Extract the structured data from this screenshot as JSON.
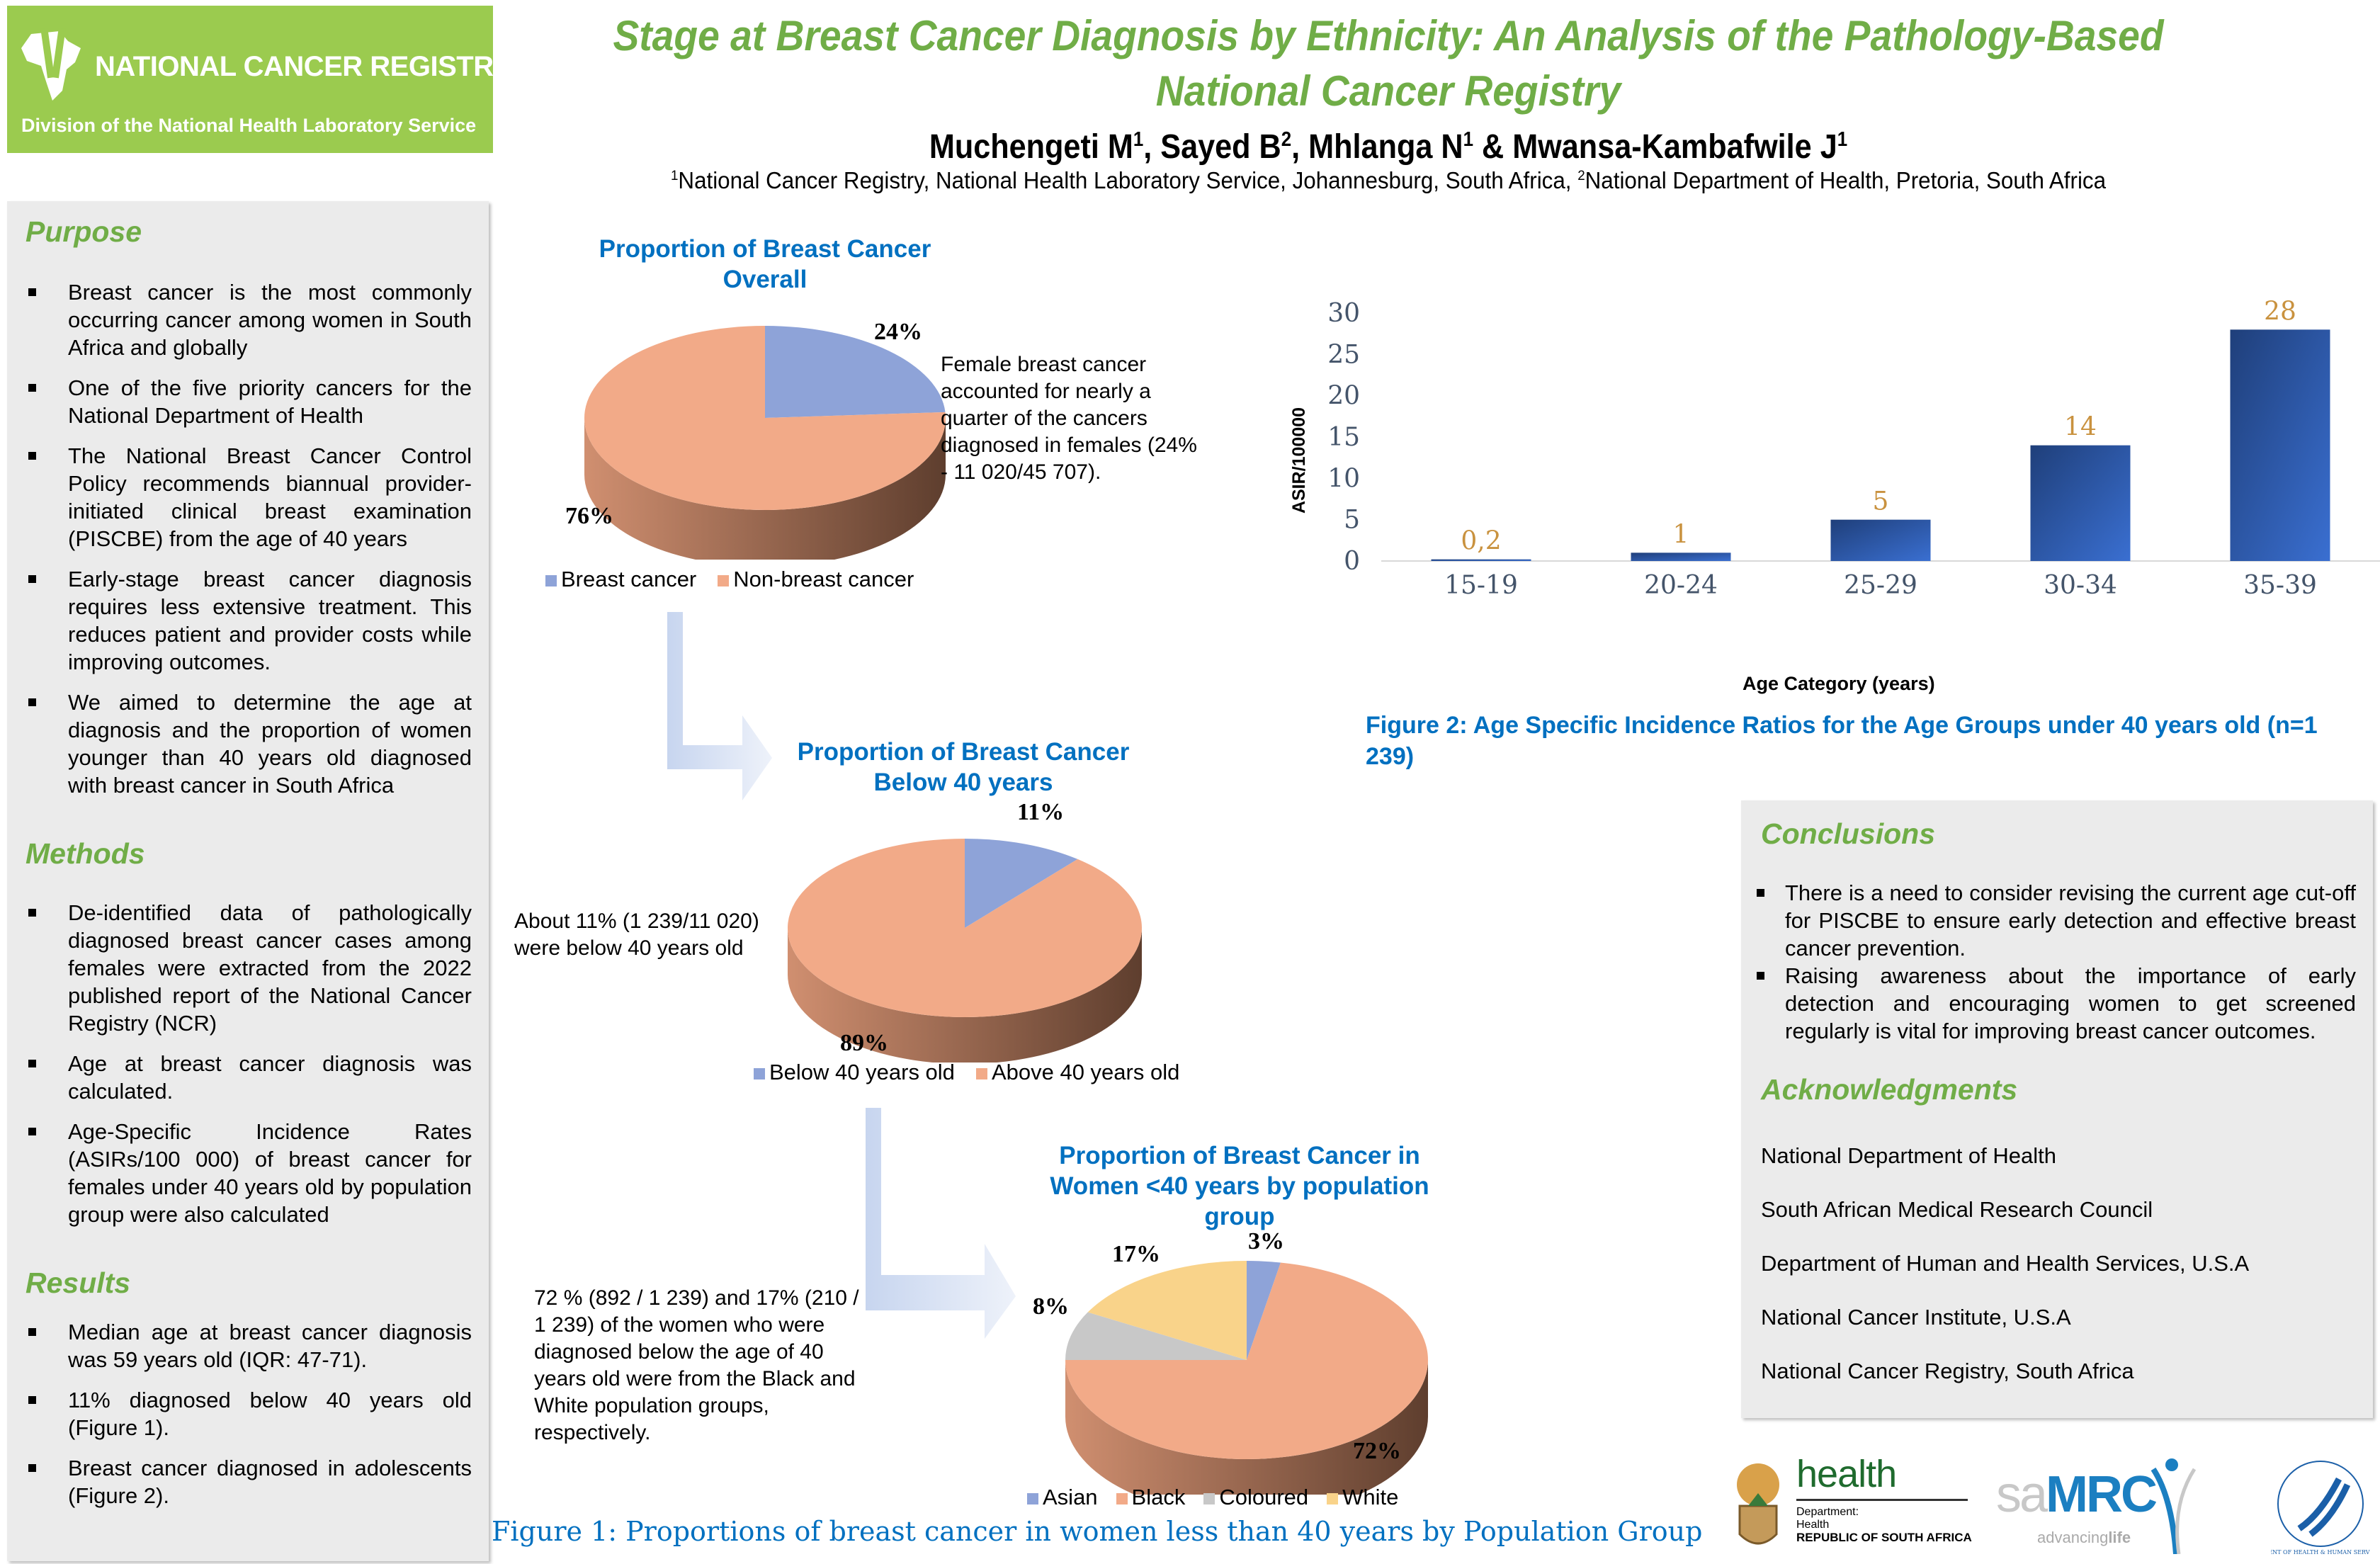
{
  "header": {
    "logo": {
      "org": "NATIONAL CANCER REGISTRY",
      "division": "Division of the National Health Laboratory Service"
    },
    "title_line1": "Stage at Breast Cancer Diagnosis by Ethnicity: An Analysis of the Pathology-Based",
    "title_line2": "National Cancer Registry",
    "authors": [
      {
        "name": "Muchengeti M",
        "aff": "1",
        "sep": ", "
      },
      {
        "name": "Sayed B",
        "aff": "2",
        "sep": ", "
      },
      {
        "name": "Mhlanga N",
        "aff": "1",
        "sep": " & "
      },
      {
        "name": "Mwansa-Kambafwile J",
        "aff": "1",
        "sep": ""
      }
    ],
    "affiliations": [
      {
        "num": "1",
        "text": "National Cancer Registry, National Health Laboratory Service, Johannesburg, South Africa, "
      },
      {
        "num": "2",
        "text": "National Department of Health, Pretoria, South Africa"
      }
    ]
  },
  "purpose": {
    "heading": "Purpose",
    "items": [
      "Breast cancer is the most commonly occurring cancer among women in South Africa and globally",
      "One of the five priority cancers for the National Department of Health",
      "The National Breast Cancer Control Policy recommends biannual provider-initiated clinical breast examination (PISCBE) from the age of 40 years",
      "Early-stage breast cancer diagnosis requires less extensive treatment. This reduces patient and provider costs while improving outcomes.",
      "We aimed to determine the age at diagnosis and the proportion of women younger than 40 years old diagnosed with breast cancer in South Africa"
    ]
  },
  "methods": {
    "heading": "Methods",
    "items": [
      "De-identified data of pathologically diagnosed breast cancer cases among females were extracted from the 2022 published report of the National Cancer Registry (NCR)",
      "Age at breast cancer diagnosis was calculated.",
      "Age-Specific Incidence Rates (ASIRs/100 000) of breast cancer for females under 40 years old by population group were also calculated"
    ]
  },
  "results": {
    "heading": "Results",
    "items": [
      "Median age at breast cancer diagnosis was 59 years old (IQR: 47-71).",
      "11% diagnosed below 40 years old (Figure 1).",
      "Breast cancer diagnosed in adolescents (Figure 2)."
    ]
  },
  "figure1": {
    "caption": "Figure 1: Proportions of breast cancer in women less than 40 years by Population Group",
    "pie1_note": "Female breast cancer accounted for nearly a quarter of the cancers diagnosed in females (24% - 11 020/45 707).",
    "pie2_note": "About 11% (1 239/11 020) were below 40 years old",
    "pie3_note": "72 % (892  / 1 239) and 17% (210 / 1 239) of the women who were diagnosed below the age of 40 years old were from the Black  and White population groups, respectively."
  },
  "figure2": {
    "caption": "Figure 2: Age Specific Incidence Ratios for the Age Groups under 40 years old (n=1 239)"
  },
  "chart_data": [
    {
      "type": "pie",
      "title": "Proportion of Breast Cancer Overall",
      "labels": [
        "Breast cancer",
        "Non-breast cancer"
      ],
      "values": [
        24,
        76
      ],
      "value_labels": [
        "24%",
        "76%"
      ],
      "colors": [
        "#8ea3d8",
        "#f2aa88"
      ],
      "legend": "bottom"
    },
    {
      "type": "pie",
      "title": "Proportion of Breast Cancer Below 40 years",
      "labels": [
        "Below 40 years old",
        "Above 40 years old"
      ],
      "values": [
        11,
        89
      ],
      "value_labels": [
        "11%",
        "89%"
      ],
      "colors": [
        "#8ea3d8",
        "#f2aa88"
      ],
      "legend": "bottom"
    },
    {
      "type": "pie",
      "title": "Proportion of Breast Cancer in Women <40 years by population group",
      "labels": [
        "Asian",
        "Black",
        "Coloured",
        "White"
      ],
      "values": [
        3,
        72,
        8,
        17
      ],
      "value_labels": [
        "3%",
        "72%",
        "8%",
        "17%"
      ],
      "colors": [
        "#8ea3d8",
        "#f2aa88",
        "#c8c8c8",
        "#f9d38a"
      ],
      "legend": "bottom"
    },
    {
      "type": "bar",
      "title": "",
      "categories": [
        "15-19",
        "20-24",
        "25-29",
        "30-34",
        "35-39"
      ],
      "values": [
        0.2,
        1,
        5,
        14,
        28
      ],
      "value_labels": [
        "0,2",
        "1",
        "5",
        "14",
        "28"
      ],
      "xlabel": "Age Category (years)",
      "ylabel": "ASIR/100000",
      "ylim": [
        0,
        30
      ],
      "yticks": [
        0,
        5,
        10,
        15,
        20,
        25,
        30
      ],
      "bar_color": "#2f5597",
      "label_color": "#c9923f",
      "grid": false
    }
  ],
  "conclusions": {
    "heading": "Conclusions",
    "items": [
      "There is a need to consider revising the current age cut-off for PISCBE to ensure early detection and effective breast cancer prevention.",
      "Raising awareness about the importance of early detection and encouraging women to get screened regularly is vital for improving breast cancer outcomes."
    ]
  },
  "acknowledgments": {
    "heading": "Acknowledgments",
    "items": [
      "National Department of Health",
      "South African Medical Research Council",
      "Department of Human and Health Services, U.S.A",
      "National Cancer Institute, U.S.A",
      "National Cancer Registry, South Africa"
    ]
  },
  "footer_logos": {
    "health": {
      "word": "health",
      "line1": "Department:",
      "line2": "Health",
      "line3": "REPUBLIC OF SOUTH AFRICA"
    },
    "samrc": {
      "sa": "sa",
      "mrc": "MRC",
      "tag1": "advancing",
      "tag2": "life"
    },
    "hhs": {
      "ring": "DEPARTMENT OF HEALTH & HUMAN SERVICES · USA"
    }
  },
  "colors": {
    "green": "#70ad47",
    "logo_green": "#9bcb4f",
    "blue": "#0070c0",
    "bar": "#2f5597",
    "label": "#c9923f"
  }
}
